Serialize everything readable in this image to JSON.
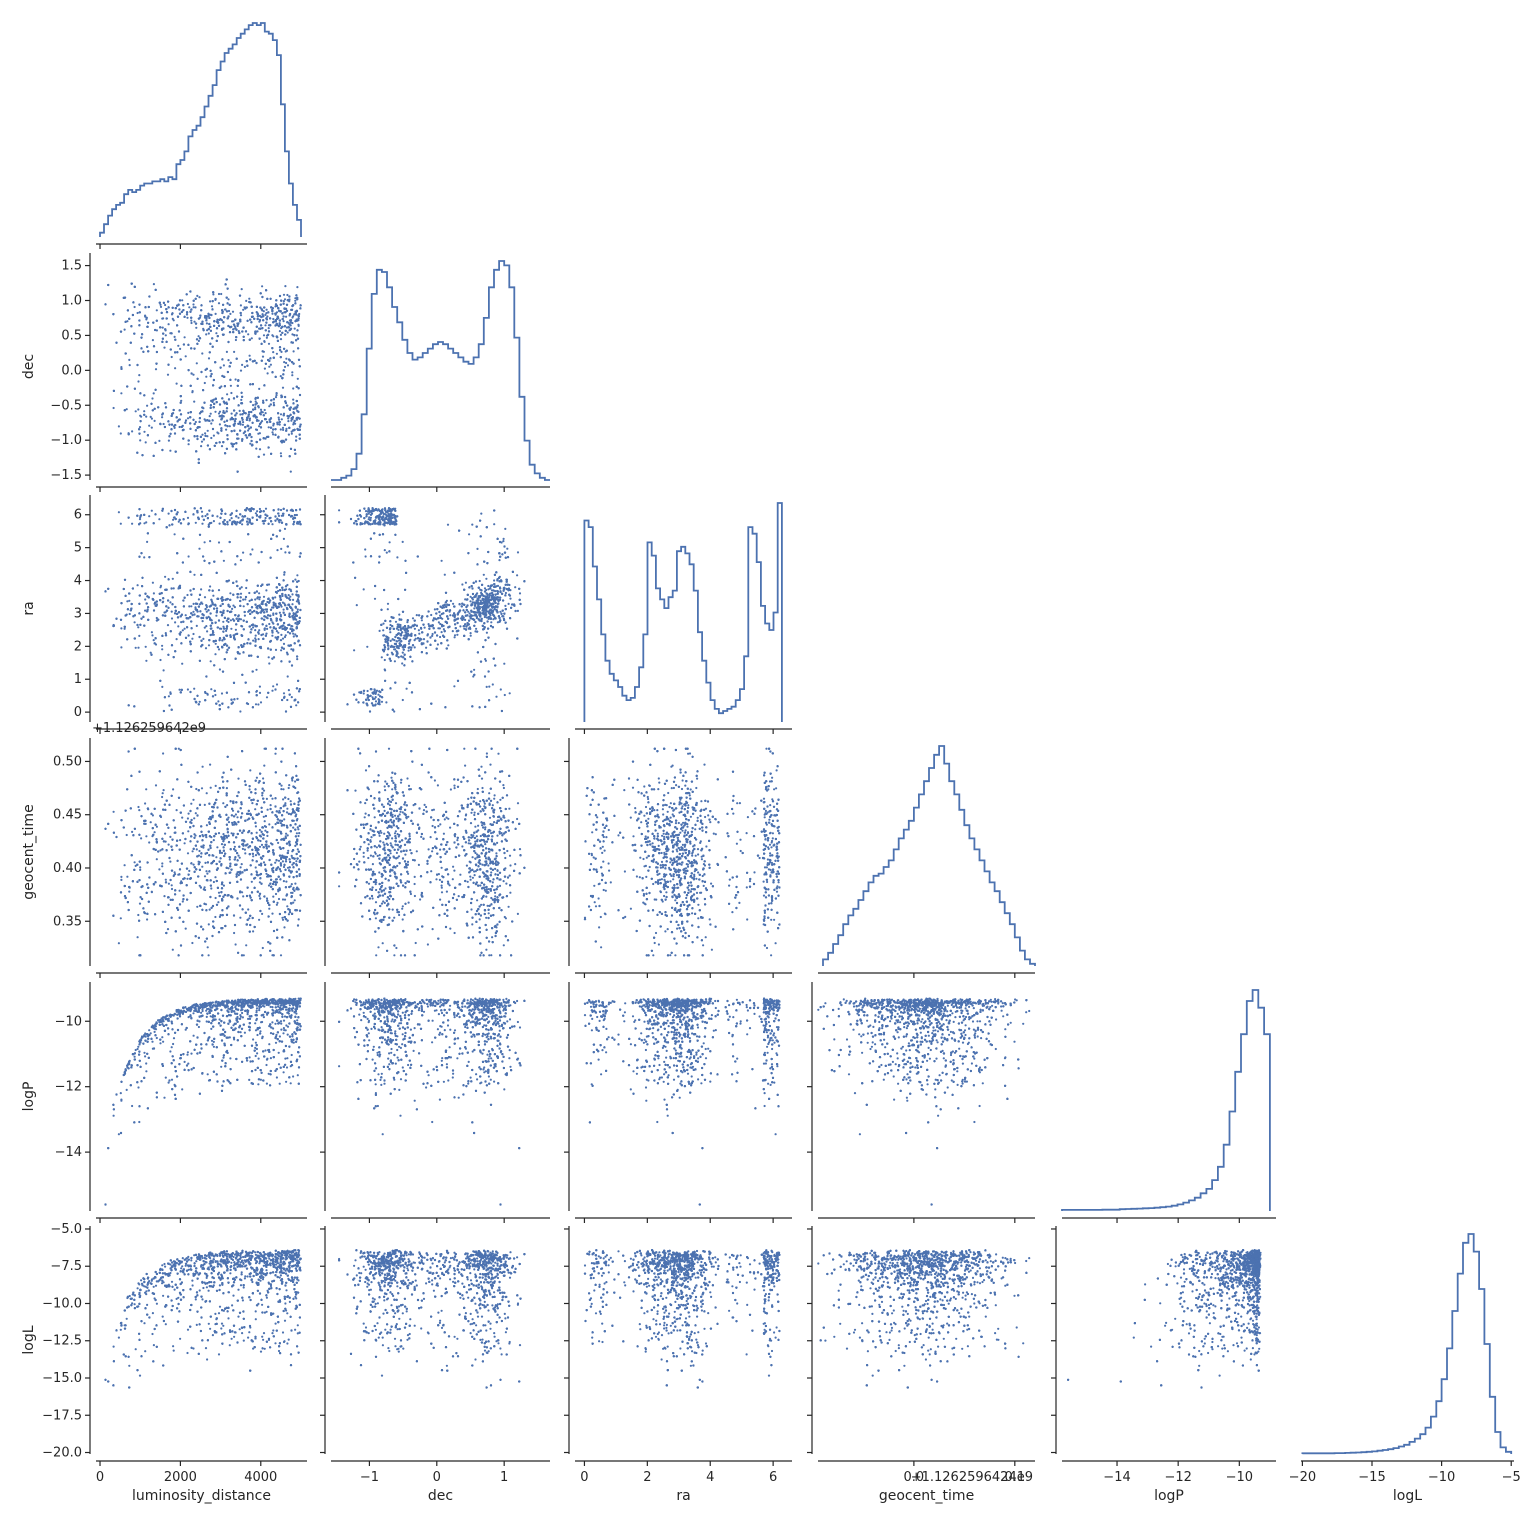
{
  "chart_data": {
    "type": "pairplot-corner",
    "color": "#4c72b0",
    "variables": [
      {
        "key": "luminosity_distance",
        "label": "luminosity_distance",
        "range": [
          -100,
          5150
        ],
        "ticks": [
          0,
          2000,
          4000
        ],
        "tick_labels": [
          "0",
          "2000",
          "4000"
        ],
        "offset_label": ""
      },
      {
        "key": "dec",
        "label": "dec",
        "range": [
          -1.57,
          1.68
        ],
        "ticks": [
          -1.5,
          -1.0,
          -0.5,
          0.0,
          0.5,
          1.0,
          1.5
        ],
        "tick_labels": [
          "−1.5",
          "−1.0",
          "−0.5",
          "0.0",
          "0.5",
          "1.0",
          "1.5"
        ],
        "x_ticks": [
          -1,
          0,
          1
        ],
        "x_tick_labels": [
          "−1",
          "0",
          "1"
        ],
        "offset_label": ""
      },
      {
        "key": "ra",
        "label": "ra",
        "range": [
          -0.3,
          6.6
        ],
        "ticks": [
          0,
          1,
          2,
          3,
          4,
          5,
          6
        ],
        "tick_labels": [
          "0",
          "1",
          "2",
          "3",
          "4",
          "5",
          "6"
        ],
        "x_ticks": [
          0,
          2,
          4,
          6
        ],
        "x_tick_labels": [
          "0",
          "2",
          "4",
          "6"
        ],
        "offset_label": ""
      },
      {
        "key": "geocent_time",
        "label": "geocent_time",
        "range": [
          0.308,
          0.522
        ],
        "ticks": [
          0.35,
          0.4,
          0.45,
          0.5
        ],
        "tick_labels": [
          "0.35",
          "0.40",
          "0.45",
          "0.50"
        ],
        "x_range": [
          -0.095,
          0.12
        ],
        "x_ticks": [
          0.0,
          0.1
        ],
        "x_tick_labels": [
          "0.0",
          "0.1"
        ],
        "offset_label_y": "+1.126259642e9",
        "offset_label_x": "+1.1262596424e9"
      },
      {
        "key": "logP",
        "label": "logP",
        "range": [
          -15.8,
          -8.8
        ],
        "ticks": [
          -14,
          -12,
          -10
        ],
        "tick_labels": [
          "−14",
          "−12",
          "−10"
        ],
        "offset_label": ""
      },
      {
        "key": "logL",
        "label": "logL",
        "range": [
          -20.1,
          -4.8
        ],
        "ticks": [
          -20.0,
          -17.5,
          -15.0,
          -12.5,
          -10.0,
          -7.5,
          -5.0
        ],
        "tick_labels": [
          "−20.0",
          "−17.5",
          "−15.0",
          "−12.5",
          "−10.0",
          "−7.5",
          "−5.0"
        ],
        "x_ticks": [
          -20,
          -15,
          -10,
          -5
        ],
        "x_tick_labels": [
          "−20",
          "−15",
          "−10",
          "−5"
        ],
        "offset_label": ""
      }
    ],
    "histograms": {
      "luminosity_distance": [
        0.02,
        0.06,
        0.1,
        0.13,
        0.15,
        0.16,
        0.2,
        0.22,
        0.21,
        0.22,
        0.24,
        0.25,
        0.25,
        0.26,
        0.26,
        0.27,
        0.26,
        0.28,
        0.27,
        0.34,
        0.36,
        0.4,
        0.47,
        0.5,
        0.52,
        0.56,
        0.61,
        0.66,
        0.71,
        0.78,
        0.82,
        0.86,
        0.88,
        0.9,
        0.93,
        0.95,
        0.97,
        0.99,
        1.0,
        0.99,
        1.0,
        0.96,
        0.95,
        0.92,
        0.85,
        0.62,
        0.4,
        0.25,
        0.15,
        0.08
      ],
      "dec": [
        0.0,
        0.0,
        0.01,
        0.02,
        0.05,
        0.12,
        0.3,
        0.6,
        0.85,
        0.96,
        0.95,
        0.88,
        0.79,
        0.72,
        0.64,
        0.58,
        0.55,
        0.56,
        0.58,
        0.6,
        0.62,
        0.63,
        0.62,
        0.6,
        0.58,
        0.56,
        0.54,
        0.53,
        0.56,
        0.62,
        0.74,
        0.88,
        0.96,
        1.0,
        0.98,
        0.88,
        0.65,
        0.38,
        0.18,
        0.07,
        0.03,
        0.01,
        0.0
      ],
      "ra": [
        0.92,
        0.89,
        0.71,
        0.56,
        0.4,
        0.28,
        0.22,
        0.19,
        0.16,
        0.12,
        0.1,
        0.11,
        0.16,
        0.25,
        0.4,
        0.82,
        0.76,
        0.61,
        0.56,
        0.52,
        0.57,
        0.6,
        0.78,
        0.8,
        0.77,
        0.72,
        0.6,
        0.41,
        0.28,
        0.18,
        0.1,
        0.06,
        0.04,
        0.05,
        0.06,
        0.07,
        0.1,
        0.15,
        0.3,
        0.89,
        0.86,
        0.73,
        0.53,
        0.45,
        0.42,
        0.5,
        1.0
      ],
      "geocent_time": [
        0.03,
        0.06,
        0.1,
        0.14,
        0.19,
        0.23,
        0.26,
        0.3,
        0.34,
        0.38,
        0.41,
        0.42,
        0.45,
        0.48,
        0.53,
        0.58,
        0.62,
        0.66,
        0.72,
        0.78,
        0.84,
        0.9,
        0.96,
        1.0,
        0.92,
        0.84,
        0.78,
        0.71,
        0.64,
        0.58,
        0.53,
        0.48,
        0.43,
        0.38,
        0.34,
        0.29,
        0.24,
        0.19,
        0.13,
        0.07,
        0.03,
        0.01
      ],
      "logP": [
        0.005,
        0.005,
        0.005,
        0.005,
        0.005,
        0.005,
        0.005,
        0.006,
        0.006,
        0.006,
        0.008,
        0.009,
        0.01,
        0.011,
        0.012,
        0.013,
        0.015,
        0.017,
        0.02,
        0.024,
        0.03,
        0.038,
        0.048,
        0.06,
        0.08,
        0.1,
        0.14,
        0.2,
        0.3,
        0.45,
        0.63,
        0.8,
        0.95,
        1.0,
        0.92,
        0.8
      ],
      "logL": [
        0.003,
        0.003,
        0.003,
        0.003,
        0.003,
        0.003,
        0.004,
        0.004,
        0.005,
        0.006,
        0.007,
        0.008,
        0.01,
        0.012,
        0.015,
        0.018,
        0.022,
        0.027,
        0.034,
        0.042,
        0.055,
        0.07,
        0.09,
        0.12,
        0.17,
        0.24,
        0.34,
        0.48,
        0.65,
        0.82,
        0.96,
        1.0,
        0.92,
        0.75,
        0.5,
        0.26,
        0.1,
        0.03,
        0.01
      ]
    },
    "hist_ranges": {
      "luminosity_distance": [
        0,
        5000
      ],
      "dec": [
        -1.57,
        1.68
      ],
      "ra": [
        0,
        6.28
      ],
      "geocent_time": [
        -0.09,
        0.12
      ],
      "logP": [
        -15.8,
        -9.0
      ],
      "logL": [
        -20.0,
        -5.0
      ]
    }
  }
}
